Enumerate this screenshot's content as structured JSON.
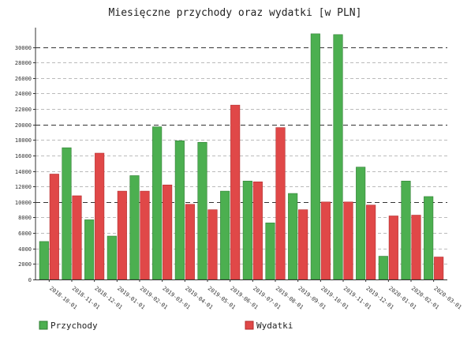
{
  "chart_data": {
    "type": "bar",
    "title": "Miesięczne przychody oraz wydatki [w PLN]",
    "categories": [
      "2018-10-01",
      "2018-11-01",
      "2018-12-01",
      "2019-01-01",
      "2019-02-01",
      "2019-03-01",
      "2019-04-01",
      "2019-05-01",
      "2019-06-01",
      "2019-07-01",
      "2019-08-01",
      "2019-09-01",
      "2019-10-01",
      "2019-11-01",
      "2019-12-01",
      "2020-01-01",
      "2020-02-01",
      "2020-03-01"
    ],
    "series": [
      {
        "name": "Przychody",
        "color": "#4caf50",
        "values": [
          4900,
          17000,
          7700,
          5600,
          13400,
          19700,
          17900,
          17700,
          11400,
          12700,
          7300,
          11100,
          31700,
          31600,
          14500,
          3000,
          12700,
          10700
        ]
      },
      {
        "name": "Wydatki",
        "color": "#e04848",
        "values": [
          13600,
          10800,
          16300,
          11400,
          11400,
          12200,
          9700,
          9000,
          22500,
          12600,
          19600,
          9000,
          10000,
          10000,
          9600,
          8200,
          8300,
          2900
        ]
      }
    ],
    "yticks": [
      0,
      2000,
      4000,
      6000,
      8000,
      10000,
      12000,
      14000,
      16000,
      18000,
      20000,
      22000,
      24000,
      26000,
      28000,
      30000
    ],
    "ylim": [
      0,
      32500
    ],
    "xlabel": "",
    "ylabel": "",
    "legend_position": "bottom",
    "grid": true
  }
}
